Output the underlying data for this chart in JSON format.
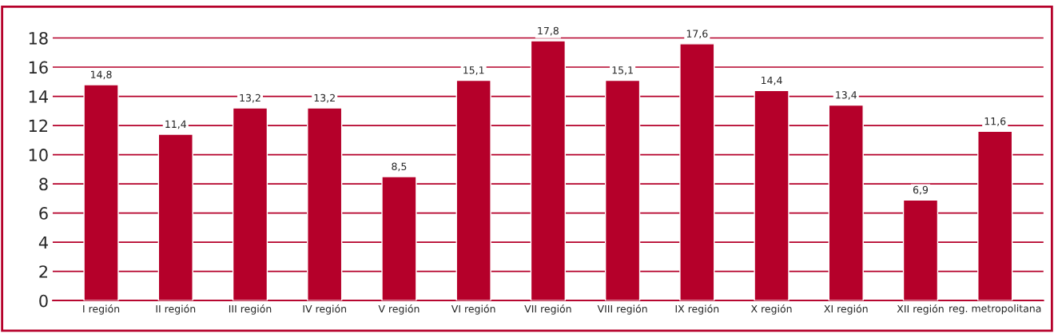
{
  "chart_data": {
    "type": "bar",
    "categories": [
      "I región",
      "II región",
      "III región",
      "IV región",
      "V región",
      "VI región",
      "VII región",
      "VIII región",
      "IX región",
      "X región",
      "XI región",
      "XII región",
      "reg. metropolitana"
    ],
    "values": [
      14.8,
      11.4,
      13.2,
      13.2,
      8.5,
      15.1,
      17.8,
      15.1,
      17.6,
      14.4,
      13.4,
      6.9,
      11.6
    ],
    "value_labels": [
      "14,8",
      "11,4",
      "13,2",
      "13,2",
      "8,5",
      "15,1",
      "17,8",
      "15,1",
      "17,6",
      "14,4",
      "13,4",
      "6,9",
      "11,6"
    ],
    "color": "#b5002a",
    "ylim": [
      0,
      19
    ],
    "yticks": [
      0,
      2,
      4,
      6,
      8,
      10,
      12,
      14,
      16,
      18
    ],
    "grid": "y"
  }
}
